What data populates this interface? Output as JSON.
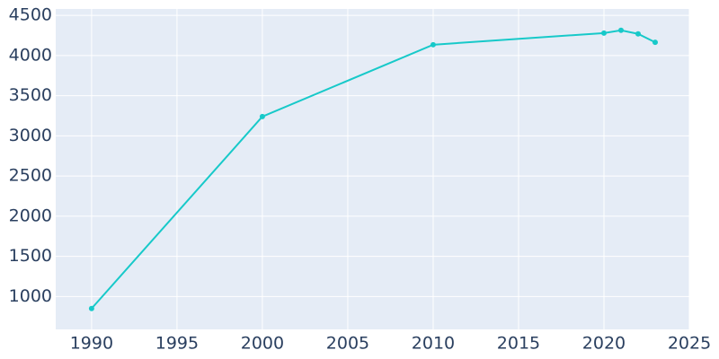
{
  "chart_data": {
    "type": "line",
    "x": [
      1990,
      2000,
      2010,
      2020,
      2021,
      2022,
      2023
    ],
    "series": [
      {
        "color": "#17c9c9",
        "values": [
          850,
          3240,
          4135,
          4280,
          4315,
          4270,
          4165
        ]
      }
    ],
    "xlim": [
      1987.9,
      2025
    ],
    "xticks": [
      1990,
      1995,
      2000,
      2005,
      2010,
      2015,
      2020,
      2025
    ],
    "ylim": [
      590,
      4580
    ],
    "yticks": [
      1000,
      1500,
      2000,
      2500,
      3000,
      3500,
      4000,
      4500
    ],
    "grid": true
  }
}
